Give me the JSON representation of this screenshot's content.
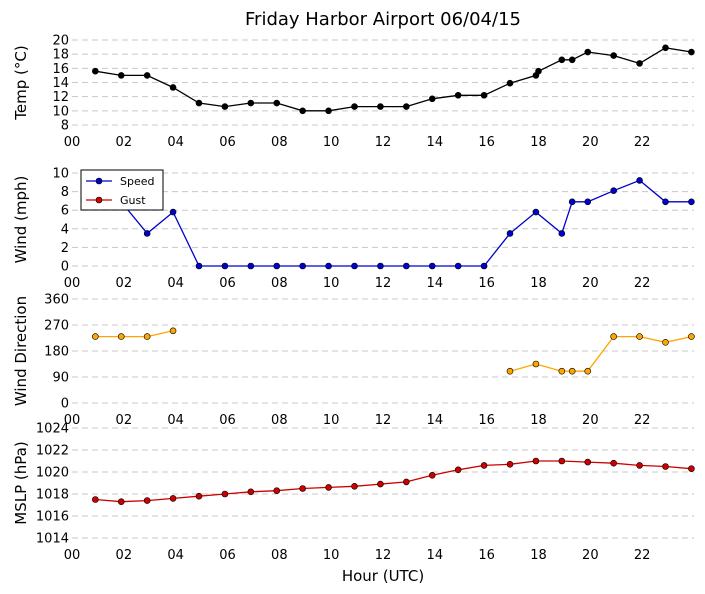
{
  "chart_data": {
    "type": "line",
    "title": "Friday Harbor Airport 06/04/15",
    "xlabel": "Hour (UTC)",
    "x_tick_labels": [
      "00",
      "02",
      "04",
      "06",
      "08",
      "10",
      "12",
      "14",
      "16",
      "18",
      "20",
      "22"
    ],
    "xlim": [
      0,
      24
    ],
    "panels": [
      {
        "id": "temp",
        "ylabel": "Temp (°C)",
        "ylim": [
          8,
          20
        ],
        "yticks": [
          8,
          10,
          12,
          14,
          16,
          18,
          20
        ],
        "grid": true,
        "series": [
          {
            "color": "#000000",
            "marker": "#000000",
            "x": [
              0.9,
              1.9,
              2.9,
              3.9,
              4.9,
              5.9,
              6.9,
              7.9,
              8.9,
              9.9,
              10.9,
              11.9,
              12.9,
              13.9,
              14.9,
              15.9,
              16.9,
              17.9,
              18.0,
              18.9,
              19.3,
              19.9,
              20.9,
              21.9,
              22.9,
              23.9
            ],
            "y": [
              15.6,
              15.0,
              15.0,
              13.3,
              11.1,
              10.6,
              11.1,
              11.1,
              10.0,
              10.0,
              10.6,
              10.6,
              10.6,
              11.7,
              12.2,
              12.2,
              13.9,
              15.0,
              15.6,
              17.2,
              17.2,
              18.3,
              17.8,
              16.7,
              18.9,
              18.3
            ]
          }
        ]
      },
      {
        "id": "wind",
        "ylabel": "Wind (mph)",
        "ylim": [
          0,
          10
        ],
        "yticks": [
          0,
          2,
          4,
          6,
          8,
          10
        ],
        "grid": true,
        "legend": {
          "position": "top-left",
          "entries": [
            {
              "label": "Speed",
              "color": "#0000cc"
            },
            {
              "label": "Gust",
              "color": "#cc0000"
            }
          ]
        },
        "series": [
          {
            "name": "Speed",
            "color": "#0000cc",
            "marker": "#0000cc",
            "x": [
              1.9,
              2.9,
              3.9,
              4.9,
              5.9,
              6.9,
              7.9,
              8.9,
              9.9,
              10.9,
              11.9,
              12.9,
              13.9,
              14.9,
              15.9,
              16.9,
              17.9,
              18.9,
              19.3,
              19.9,
              20.9,
              21.9,
              22.9,
              23.9
            ],
            "y": [
              6.9,
              3.5,
              5.8,
              0,
              0,
              0,
              0,
              0,
              0,
              0,
              0,
              0,
              0,
              0,
              0,
              3.5,
              5.8,
              3.5,
              6.9,
              6.9,
              8.1,
              9.2,
              6.9,
              6.9
            ]
          }
        ]
      },
      {
        "id": "dir",
        "ylabel": "Wind Direction",
        "ylim": [
          0,
          360
        ],
        "yticks": [
          0,
          90,
          180,
          270,
          360
        ],
        "grid": true,
        "series": [
          {
            "color": "#ffa500",
            "marker": "#ffa500",
            "segments": [
              {
                "x": [
                  0.9,
                  1.9,
                  2.9,
                  3.9
                ],
                "y": [
                  230,
                  230,
                  230,
                  250
                ]
              },
              {
                "x": [
                  16.9,
                  17.9,
                  18.9,
                  19.3,
                  19.9,
                  20.9,
                  21.9,
                  22.9,
                  23.9
                ],
                "y": [
                  110,
                  135,
                  110,
                  110,
                  110,
                  230,
                  230,
                  210,
                  230
                ]
              }
            ]
          }
        ]
      },
      {
        "id": "mslp",
        "ylabel": "MSLP (hPa)",
        "ylim": [
          1014,
          1024
        ],
        "yticks": [
          1014,
          1016,
          1018,
          1020,
          1022,
          1024
        ],
        "grid": true,
        "series": [
          {
            "color": "#cc0000",
            "marker": "#cc0000",
            "x": [
              0.9,
              1.9,
              2.9,
              3.9,
              4.9,
              5.9,
              6.9,
              7.9,
              8.9,
              9.9,
              10.9,
              11.9,
              12.9,
              13.9,
              14.9,
              15.9,
              16.9,
              17.9,
              18.9,
              19.9,
              20.9,
              21.9,
              22.9,
              23.9
            ],
            "y": [
              1017.5,
              1017.3,
              1017.4,
              1017.6,
              1017.8,
              1018.0,
              1018.2,
              1018.3,
              1018.5,
              1018.6,
              1018.7,
              1018.9,
              1019.1,
              1019.7,
              1020.2,
              1020.6,
              1020.7,
              1021.0,
              1021.0,
              1020.9,
              1020.8,
              1020.6,
              1020.5,
              1020.3
            ]
          }
        ]
      }
    ]
  }
}
